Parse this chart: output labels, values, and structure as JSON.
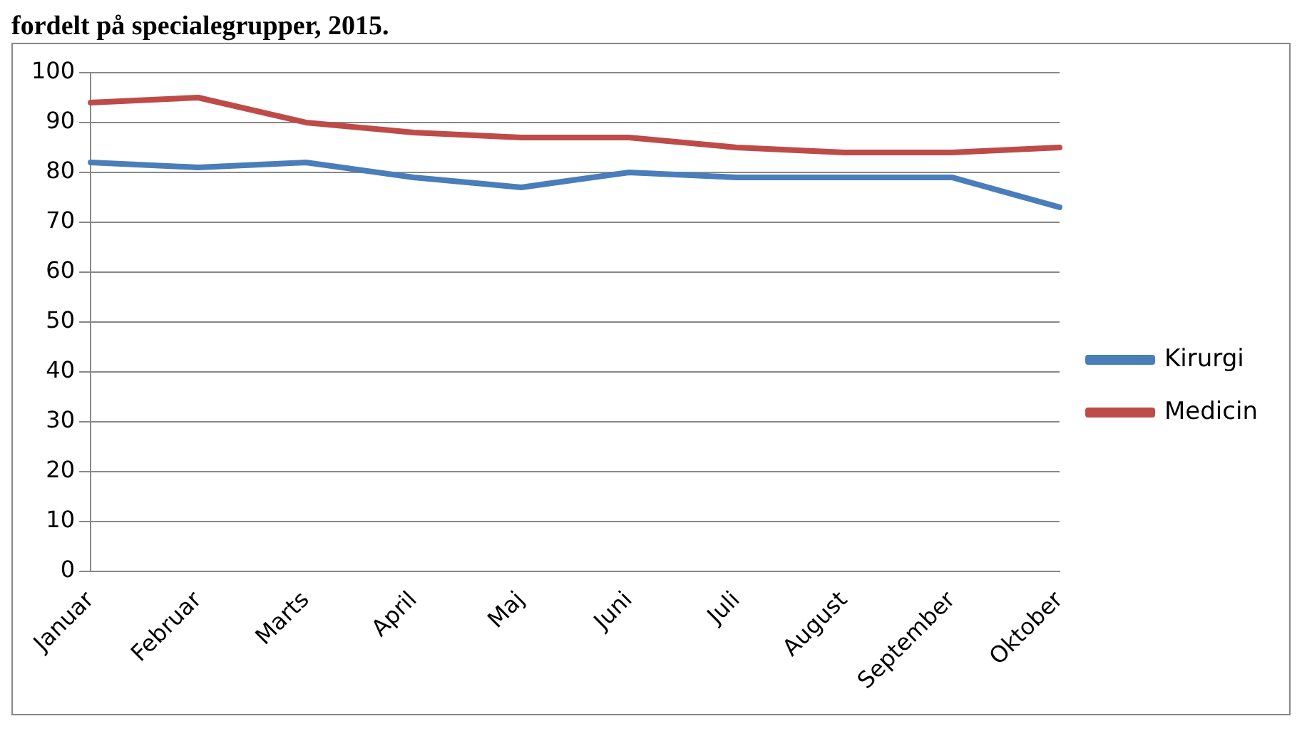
{
  "chart_data": {
    "type": "line",
    "title": "fordelt på specialegrupper, 2015.",
    "categories": [
      "Januar",
      "Februar",
      "Marts",
      "April",
      "Maj",
      "Juni",
      "Juli",
      "August",
      "September",
      "Oktober"
    ],
    "series": [
      {
        "name": "Kirurgi",
        "color": "#4a7ebb",
        "values": [
          82,
          81,
          82,
          79,
          77,
          80,
          79,
          79,
          79,
          73
        ]
      },
      {
        "name": "Medicin",
        "color": "#be4b48",
        "values": [
          94,
          95,
          90,
          88,
          87,
          87,
          85,
          84,
          84,
          85
        ]
      }
    ],
    "ylim": [
      0,
      100
    ],
    "yticks": [
      0,
      10,
      20,
      30,
      40,
      50,
      60,
      70,
      80,
      90,
      100
    ],
    "grid": "y",
    "legend": "right",
    "marker": "none",
    "line_style": "solid"
  }
}
